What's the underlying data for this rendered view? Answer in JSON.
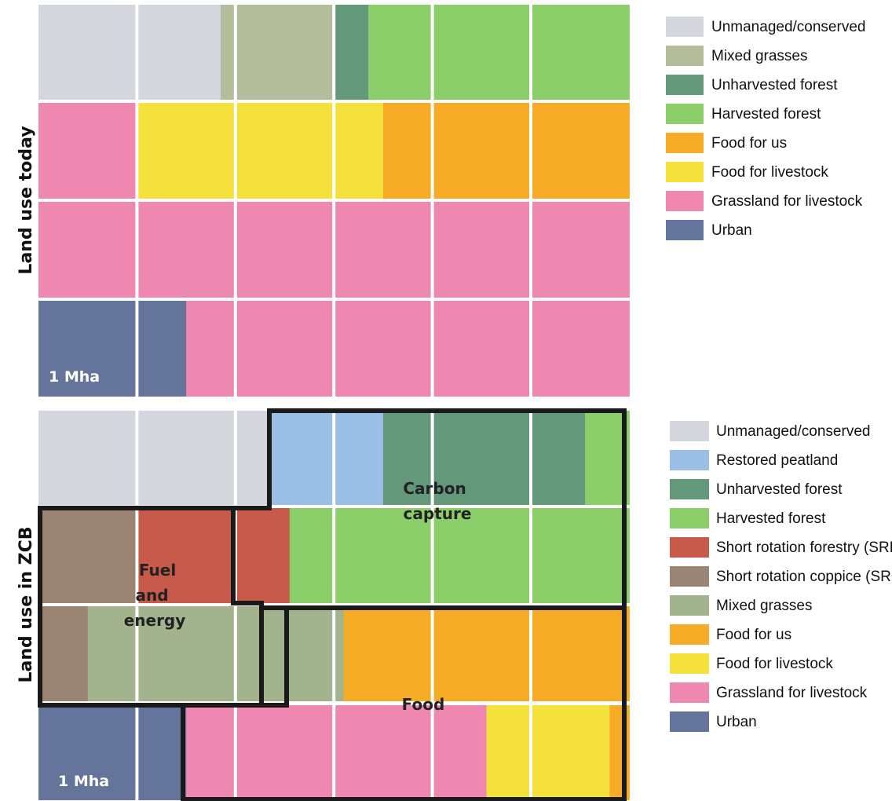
{
  "colors": {
    "unmanaged": "#d4d6dd",
    "mixed_grasses_today": "#b3bd9c",
    "mixed_grasses_zcb": "#a3b38d",
    "unharvested_forest": "#64987a",
    "harvested_forest": "#8ccf6a",
    "food_for_us": "#f6ac27",
    "food_for_livestock": "#f5e13b",
    "grassland_for_livestock": "#ef88b1",
    "urban": "#65749a",
    "restored_peatland": "#9bbee4",
    "srf": "#c75a4b",
    "src": "#9a8474"
  },
  "chart_data": [
    {
      "type": "heatmap",
      "title": "Land use today",
      "unit_label": "1 Mha",
      "grid": {
        "columns": 6,
        "rows": 4
      },
      "legend": [
        {
          "key": "unmanaged",
          "label": "Unmanaged/conserved",
          "color": "#d4d6dd"
        },
        {
          "key": "mixed_grasses",
          "label": "Mixed grasses",
          "color": "#b3bd9c"
        },
        {
          "key": "unharvested_forest",
          "label": "Unharvested forest",
          "color": "#64987a"
        },
        {
          "key": "harvested_forest",
          "label": "Harvested forest",
          "color": "#8ccf6a"
        },
        {
          "key": "food_for_us",
          "label": "Food for us",
          "color": "#f6ac27"
        },
        {
          "key": "food_for_livestock",
          "label": "Food for livestock",
          "color": "#f5e13b"
        },
        {
          "key": "grassland_for_livestock",
          "label": "Grassland for livestock",
          "color": "#ef88b1"
        },
        {
          "key": "urban",
          "label": "Urban",
          "color": "#65749a"
        }
      ],
      "rows": [
        [
          [
            "unmanaged",
            1.85
          ],
          [
            "mixed_grasses",
            1.15
          ],
          [
            "unharvested_forest",
            0.35
          ],
          [
            "harvested_forest",
            2.65
          ]
        ],
        [
          [
            "grassland_for_livestock",
            1.0
          ],
          [
            "food_for_livestock",
            2.5
          ],
          [
            "food_for_us",
            2.5
          ]
        ],
        [
          [
            "grassland_for_livestock",
            6.0
          ]
        ],
        [
          [
            "urban",
            1.5
          ],
          [
            "grassland_for_livestock",
            4.5
          ]
        ]
      ]
    },
    {
      "type": "heatmap",
      "title": "Land use in ZCB",
      "unit_label": "1 Mha",
      "grid": {
        "columns": 6,
        "rows": 4
      },
      "legend": [
        {
          "key": "unmanaged",
          "label": "Unmanaged/conserved",
          "color": "#d4d6dd"
        },
        {
          "key": "restored_peatland",
          "label": "Restored peatland",
          "color": "#9bbee4"
        },
        {
          "key": "unharvested_forest",
          "label": "Unharvested forest",
          "color": "#64987a"
        },
        {
          "key": "harvested_forest",
          "label": "Harvested forest",
          "color": "#8ccf6a"
        },
        {
          "key": "srf",
          "label": "Short rotation forestry (SRF)",
          "color": "#c75a4b"
        },
        {
          "key": "src",
          "label": "Short rotation coppice (SRC)",
          "color": "#9a8474"
        },
        {
          "key": "mixed_grasses",
          "label": "Mixed grasses",
          "color": "#a3b38d"
        },
        {
          "key": "food_for_us",
          "label": "Food for us",
          "color": "#f6ac27"
        },
        {
          "key": "food_for_livestock",
          "label": "Food for livestock",
          "color": "#f5e13b"
        },
        {
          "key": "grassland_for_livestock",
          "label": "Grassland for livestock",
          "color": "#ef88b1"
        },
        {
          "key": "urban",
          "label": "Urban",
          "color": "#65749a"
        }
      ],
      "rows": [
        [
          [
            "unmanaged",
            2.35
          ],
          [
            "restored_peatland",
            1.15
          ],
          [
            "unharvested_forest",
            2.05
          ],
          [
            "harvested_forest",
            0.45
          ]
        ],
        [
          [
            "src",
            1.0
          ],
          [
            "srf",
            1.55
          ],
          [
            "harvested_forest",
            3.45
          ]
        ],
        [
          [
            "src",
            0.5
          ],
          [
            "mixed_grasses",
            2.6
          ],
          [
            "food_for_us",
            2.9
          ]
        ],
        [
          [
            "urban",
            1.5
          ],
          [
            "grassland_for_livestock",
            3.05
          ],
          [
            "food_for_livestock",
            1.25
          ],
          [
            "food_for_us",
            0.2
          ]
        ]
      ],
      "regions": [
        {
          "label_lines": [
            "Carbon",
            "capture"
          ]
        },
        {
          "label_lines": [
            "Fuel",
            "and",
            "energy"
          ]
        },
        {
          "label_lines": [
            "Food"
          ]
        }
      ]
    }
  ]
}
